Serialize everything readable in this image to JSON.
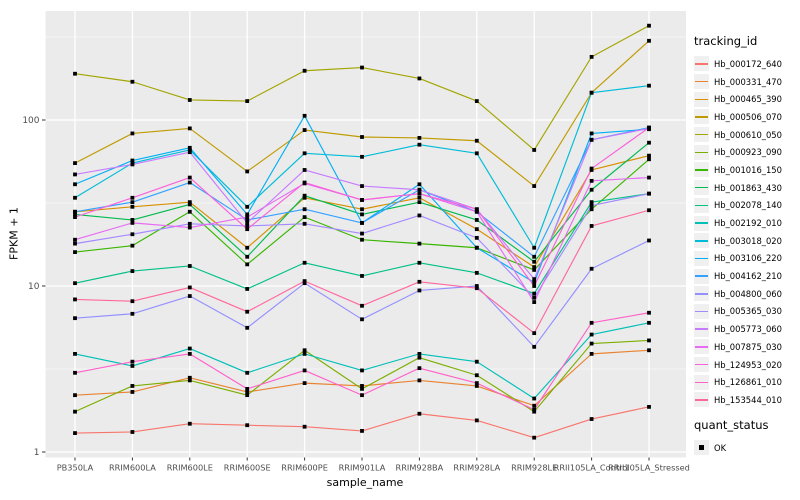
{
  "chart_data": {
    "type": "line",
    "title": "",
    "xlabel": "sample_name",
    "ylabel": "FPKM + 1",
    "y_scale": "log10",
    "y_ticks": [
      1,
      10,
      100
    ],
    "y_minor_ticks": [
      3.1623,
      31.623,
      316.23
    ],
    "ylim": [
      1,
      460
    ],
    "grid": true,
    "marker": "black-square",
    "categories": [
      "PB350LA",
      "RRIM600LA",
      "RRIM600LE",
      "RRIM600SE",
      "RRIM600PE",
      "RRIM901LA",
      "RRIM928BA",
      "RRIM928LA",
      "RRIM928LE",
      "RRII105LA_Control",
      "RRII105LA_Stressed"
    ],
    "legend": {
      "title": "tracking_id",
      "position": "right"
    },
    "quant_status": {
      "title": "quant_status",
      "items": [
        {
          "label": "OK",
          "marker": "black-square"
        }
      ]
    },
    "series": [
      {
        "name": "Hb_000172_640",
        "color": "#F8766D",
        "values": [
          1.3,
          1.32,
          1.48,
          1.45,
          1.42,
          1.34,
          1.7,
          1.55,
          1.22,
          1.58,
          1.87
        ]
      },
      {
        "name": "Hb_000331_470",
        "color": "#EA8331",
        "values": [
          2.2,
          2.3,
          2.8,
          2.3,
          2.6,
          2.5,
          2.7,
          2.5,
          1.9,
          3.9,
          4.1
        ]
      },
      {
        "name": "Hb_000465_390",
        "color": "#D89000",
        "values": [
          28,
          30,
          32,
          17,
          34,
          29,
          34,
          22,
          13,
          50,
          61
        ]
      },
      {
        "name": "Hb_000506_070",
        "color": "#C09B00",
        "values": [
          55,
          83,
          89,
          49,
          87,
          79,
          78,
          75,
          40,
          146,
          300
        ]
      },
      {
        "name": "Hb_000610_050",
        "color": "#A3A500",
        "values": [
          190,
          170,
          132,
          130,
          198,
          207,
          178,
          130,
          66,
          240,
          370
        ]
      },
      {
        "name": "Hb_000923_090",
        "color": "#7CAE00",
        "values": [
          1.75,
          2.5,
          2.7,
          2.2,
          4.1,
          2.4,
          3.7,
          2.9,
          1.75,
          4.5,
          4.7
        ]
      },
      {
        "name": "Hb_001016_150",
        "color": "#39B600",
        "values": [
          16,
          17.5,
          28,
          13.5,
          26,
          19,
          18,
          17,
          12.5,
          29,
          58
        ]
      },
      {
        "name": "Hb_001863_430",
        "color": "#00BB4E",
        "values": [
          27,
          25,
          31,
          15,
          35,
          27,
          32,
          25,
          14,
          38,
          73
        ]
      },
      {
        "name": "Hb_002078_140",
        "color": "#00C087",
        "values": [
          10.4,
          12.3,
          13.2,
          9.6,
          13.8,
          11.5,
          13.8,
          12,
          9,
          32,
          36
        ]
      },
      {
        "name": "Hb_002192_010",
        "color": "#00C0B8",
        "values": [
          3.9,
          3.3,
          4.2,
          3.0,
          3.9,
          3.1,
          3.9,
          3.5,
          2.1,
          5.1,
          6.0
        ]
      },
      {
        "name": "Hb_003018_020",
        "color": "#00BCD8",
        "values": [
          34,
          55,
          66,
          30,
          63,
          60,
          71,
          63,
          17,
          146,
          161
        ]
      },
      {
        "name": "Hb_003106_220",
        "color": "#00B0F6",
        "values": [
          41,
          57,
          68,
          27,
          106,
          24,
          41,
          17,
          10.5,
          83,
          88
        ]
      },
      {
        "name": "Hb_004162_210",
        "color": "#35A2FF",
        "values": [
          28,
          32,
          42,
          25,
          29,
          24,
          38,
          28,
          15,
          76,
          90
        ]
      },
      {
        "name": "Hb_004800_060",
        "color": "#9590FF",
        "values": [
          6.4,
          6.8,
          8.7,
          5.6,
          10.4,
          6.3,
          9.4,
          10,
          4.3,
          12.7,
          18.8
        ]
      },
      {
        "name": "Hb_005365_030",
        "color": "#A58AFF",
        "values": [
          18,
          20.5,
          23.7,
          23,
          23.7,
          20.7,
          26.6,
          19.5,
          8.5,
          30.5,
          36
        ]
      },
      {
        "name": "Hb_005773_060",
        "color": "#C77CFF",
        "values": [
          47,
          54,
          64,
          24,
          50,
          40,
          38,
          29,
          11,
          76,
          89
        ]
      },
      {
        "name": "Hb_007875_030",
        "color": "#E76BF3",
        "values": [
          19,
          24,
          22.5,
          26,
          41.5,
          33,
          36,
          28,
          8,
          43,
          45
        ]
      },
      {
        "name": "Hb_124953_020",
        "color": "#FA62DB",
        "values": [
          26,
          34,
          45,
          22,
          42,
          33,
          36,
          29,
          10,
          51,
          90
        ]
      },
      {
        "name": "Hb_126861_010",
        "color": "#FF61C9",
        "values": [
          3.0,
          3.5,
          3.9,
          2.4,
          3.1,
          2.2,
          3.2,
          2.6,
          1.8,
          6.0,
          6.9
        ]
      },
      {
        "name": "Hb_153544_010",
        "color": "#FF689F",
        "values": [
          8.3,
          8.1,
          9.8,
          7.0,
          10.7,
          7.6,
          10.6,
          9.7,
          5.2,
          23,
          28.6
        ]
      }
    ],
    "theme": {
      "panel_bg": "#EBEBEB",
      "grid_major": "#FFFFFF",
      "grid_minor": "#F5F5F5",
      "tick_color": "#333333",
      "tick_label_color": "#4D4D4D",
      "marker_color": "#000000"
    }
  }
}
